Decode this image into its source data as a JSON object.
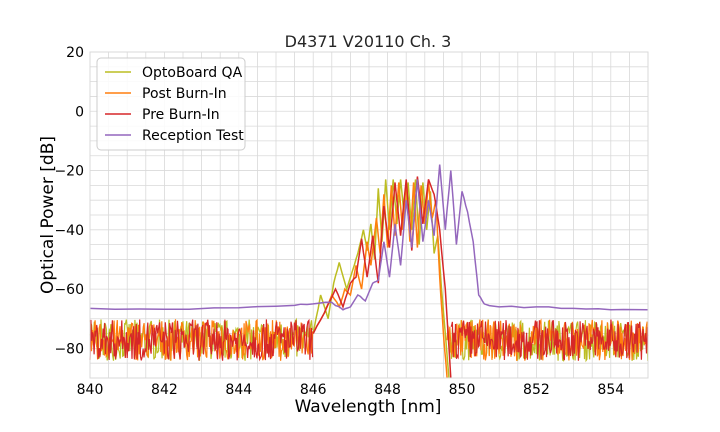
{
  "chart_data": {
    "type": "line",
    "title": "D4371 V20110 Ch. 3",
    "xlabel": "Wavelength [nm]",
    "ylabel": "Optical Power [dB]",
    "xlim": [
      840,
      855
    ],
    "ylim": [
      -90,
      20
    ],
    "xticks": [
      840,
      842,
      844,
      846,
      848,
      850,
      852,
      854
    ],
    "yticks": [
      20,
      0,
      -20,
      -40,
      -60,
      -80
    ],
    "xtick_labels": [
      "840",
      "842",
      "844",
      "846",
      "848",
      "850",
      "852",
      "854"
    ],
    "ytick_labels": [
      "20",
      "0",
      "−20",
      "−40",
      "−60",
      "−80"
    ],
    "grid": true,
    "legend_position": "top-left",
    "series": [
      {
        "name": "OptoBoard QA",
        "color": "#bcbd22",
        "x": [
          846.0,
          846.2,
          846.4,
          846.55,
          846.7,
          846.9,
          847.05,
          847.2,
          847.35,
          847.45,
          847.55,
          847.65,
          847.75,
          847.85,
          847.95,
          848.05,
          848.15,
          848.25,
          848.35,
          848.45,
          848.55,
          848.65,
          848.75,
          848.85,
          848.95,
          849.05,
          849.15,
          849.25,
          849.35,
          849.45,
          849.55,
          849.65
        ],
        "y": [
          -75,
          -62,
          -70,
          -58,
          -51,
          -60,
          -54,
          -48,
          -40,
          -47,
          -38,
          -50,
          -26,
          -44,
          -23,
          -40,
          -23,
          -38,
          -23,
          -36,
          -24,
          -40,
          -23,
          -45,
          -24,
          -40,
          -27,
          -48,
          -42,
          -60,
          -75,
          -90
        ],
        "noise_floor": -80
      },
      {
        "name": "Post Burn-In",
        "color": "#ff7f0e",
        "x": [
          846.0,
          846.3,
          846.5,
          846.7,
          846.85,
          847.0,
          847.15,
          847.3,
          847.45,
          847.55,
          847.7,
          847.8,
          847.9,
          848.0,
          848.1,
          848.2,
          848.3,
          848.4,
          848.5,
          848.6,
          848.7,
          848.8,
          848.9,
          849.0,
          849.1,
          849.2,
          849.3,
          849.4,
          849.5,
          849.6
        ],
        "y": [
          -75,
          -68,
          -62,
          -66,
          -60,
          -62,
          -52,
          -60,
          -44,
          -52,
          -36,
          -48,
          -28,
          -46,
          -25,
          -42,
          -24,
          -40,
          -24,
          -44,
          -24,
          -46,
          -25,
          -38,
          -24,
          -36,
          -30,
          -56,
          -75,
          -90
        ],
        "noise_floor": -80
      },
      {
        "name": "Pre Burn-In",
        "color": "#d62728",
        "x": [
          846.0,
          846.3,
          846.6,
          846.8,
          847.0,
          847.15,
          847.3,
          847.45,
          847.6,
          847.75,
          847.9,
          848.05,
          848.2,
          848.35,
          848.5,
          848.65,
          848.8,
          848.95,
          849.1,
          849.25,
          849.4,
          849.55,
          849.7
        ],
        "y": [
          -75,
          -68,
          -60,
          -66,
          -58,
          -56,
          -43,
          -56,
          -42,
          -58,
          -32,
          -46,
          -24,
          -42,
          -23,
          -47,
          -22,
          -38,
          -23,
          -28,
          -40,
          -60,
          -90
        ],
        "noise_floor": -80
      },
      {
        "name": "Reception Test",
        "color": "#9467bd",
        "x": [
          840.0,
          842.0,
          844.0,
          845.5,
          846.0,
          846.5,
          846.8,
          847.0,
          847.2,
          847.4,
          847.6,
          847.75,
          847.9,
          848.05,
          848.2,
          848.35,
          848.5,
          848.65,
          848.8,
          848.95,
          849.1,
          849.25,
          849.4,
          849.55,
          849.7,
          849.85,
          850.0,
          850.15,
          850.3,
          850.45,
          850.6,
          851.0,
          852.0,
          853.0,
          854.0,
          855.0
        ],
        "y": [
          -66.5,
          -66.8,
          -66.3,
          -65.5,
          -65,
          -64.5,
          -67,
          -66,
          -62,
          -64,
          -58,
          -57,
          -44,
          -56,
          -38,
          -52,
          -30,
          -46,
          -23,
          -44,
          -30,
          -42,
          -18,
          -40,
          -20,
          -45,
          -27,
          -34,
          -44,
          -62,
          -65,
          -66,
          -66,
          -66.5,
          -67,
          -67
        ],
        "noise_floor": null
      }
    ]
  }
}
